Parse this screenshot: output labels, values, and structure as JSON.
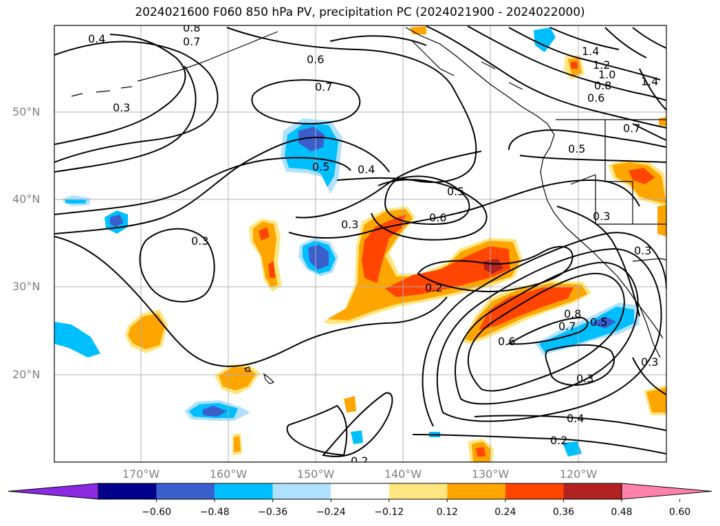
{
  "title": "2024021600 F060 850 hPa PV, precipitation PC (2024021900 - 2024022000)",
  "lat_labels": [
    "50°N",
    "40°N",
    "30°N",
    "20°N"
  ],
  "lon_labels": [
    "170°W",
    "160°W",
    "150°W",
    "140°W",
    "130°W",
    "120°W"
  ],
  "contour_labels": [
    "0.4",
    "0.8",
    "0.7",
    "0.3",
    "0.6",
    "0.7",
    "0.5",
    "0.4",
    "0.5",
    "0.6",
    "0.3",
    "0.3",
    "0.2",
    "0.5",
    "0.3",
    "0.3",
    "0.8",
    "0.7",
    "0.5",
    "0.6",
    "0.3",
    "0.3",
    "0.4",
    "0.2",
    "0.2",
    "1.4",
    "1.2",
    "1.0",
    "0.8",
    "0.6",
    "1.4",
    "0.7"
  ],
  "colorbar": {
    "ticks": [
      "−0.60",
      "−0.48",
      "−0.36",
      "−0.24",
      "−0.12",
      "0.12",
      "0.24",
      "0.36",
      "0.48",
      "0.60"
    ],
    "colors": [
      "#8a2be2",
      "#00008b",
      "#3a5fcd",
      "#00bfff",
      "#b0e2ff",
      "#ffffff",
      "#ffe680",
      "#ffa500",
      "#ff4500",
      "#b22222",
      "#ff82ab"
    ]
  }
}
